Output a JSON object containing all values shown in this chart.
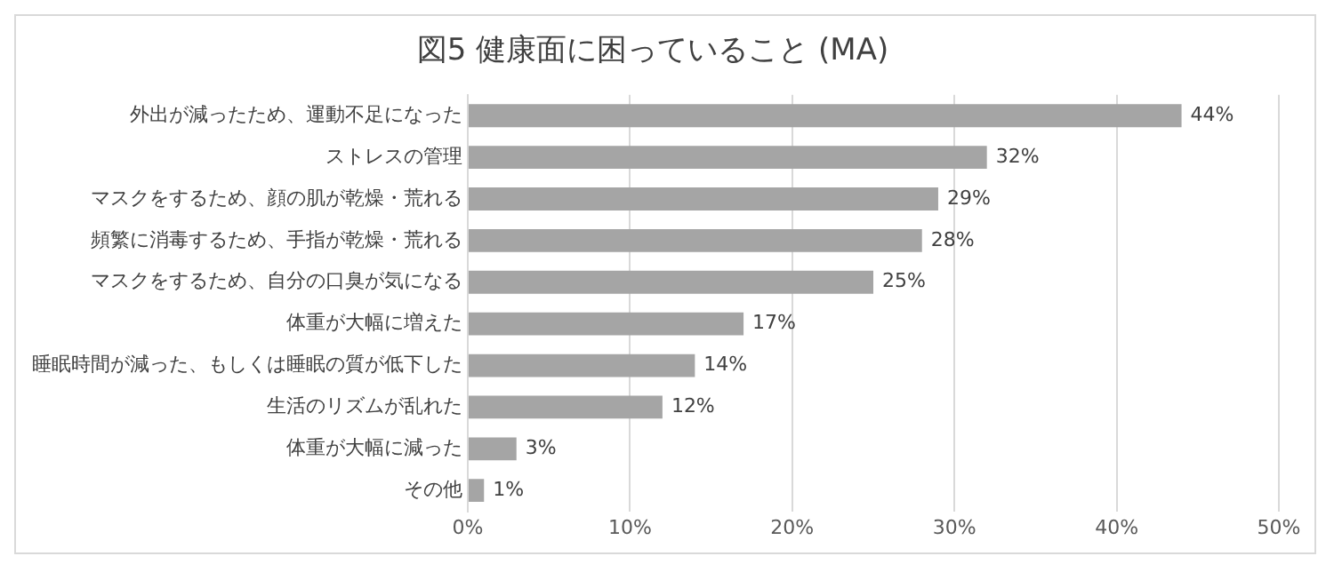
{
  "chart_data": {
    "type": "bar",
    "orientation": "horizontal",
    "title": "図5 健康面に困っていること (MA)",
    "categories": [
      "外出が減ったため、運動不足になった",
      "ストレスの管理",
      "マスクをするため、顔の肌が乾燥・荒れる",
      "頻繁に消毒するため、手指が乾燥・荒れる",
      "マスクをするため、自分の口臭が気になる",
      "体重が大幅に増えた",
      "睡眠時間が減った、もしくは睡眠の質が低下した",
      "生活のリズムが乱れた",
      "体重が大幅に減った",
      "その他"
    ],
    "values": [
      44,
      32,
      29,
      28,
      25,
      17,
      14,
      12,
      3,
      1
    ],
    "value_labels": [
      "44%",
      "32%",
      "29%",
      "28%",
      "25%",
      "17%",
      "14%",
      "12%",
      "3%",
      "1%"
    ],
    "color": "#a5a5a5",
    "xlim": [
      0,
      50
    ],
    "xticks": [
      {
        "value": 0,
        "label": "0%"
      },
      {
        "value": 10,
        "label": "10%"
      },
      {
        "value": 20,
        "label": "20%"
      },
      {
        "value": 30,
        "label": "30%"
      },
      {
        "value": 40,
        "label": "40%"
      },
      {
        "value": 50,
        "label": "50%"
      }
    ],
    "grid": "x",
    "legend": false
  }
}
